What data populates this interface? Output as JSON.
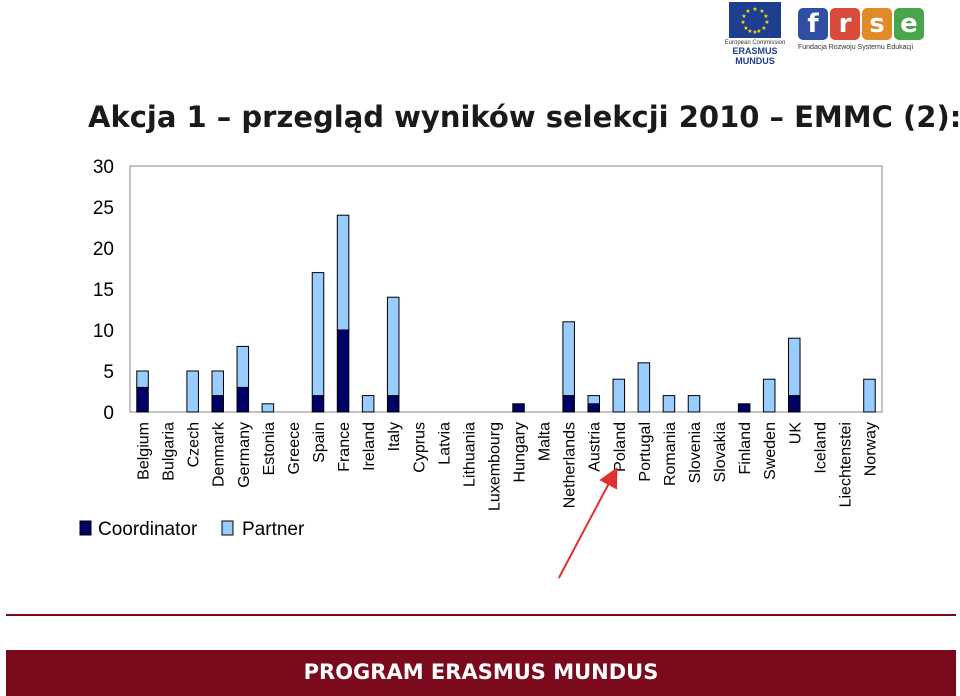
{
  "logos": {
    "ec_line1": "European Commission",
    "ec_line2": "ERASMUS",
    "ec_line3": "MUNDUS",
    "frse_letters": [
      "f",
      "r",
      "s",
      "e"
    ],
    "frse_caption": "Fundacja Rozwoju Systemu Edukacji"
  },
  "title": "Akcja 1 – przegląd wyników selekcji 2010 – EMMC (2):",
  "footer_text": "PROGRAM ERASMUS MUNDUS",
  "colors": {
    "coordinator": "#000066",
    "partner": "#99ccff",
    "footer": "#7a0a1c",
    "arrow": "#e03030"
  },
  "chart_data": {
    "type": "bar",
    "stacked": true,
    "categories": [
      "Belgium",
      "Bulgaria",
      "Czech",
      "Denmark",
      "Germany",
      "Estonia",
      "Greece",
      "Spain",
      "France",
      "Ireland",
      "Italy",
      "Cyprus",
      "Latvia",
      "Lithuania",
      "Luxembourg",
      "Hungary",
      "Malta",
      "Netherlands",
      "Austria",
      "Poland",
      "Portugal",
      "Romania",
      "Slovenia",
      "Slovakia",
      "Finland",
      "Sweden",
      "UK",
      "Iceland",
      "Liechtenstei",
      "Norway"
    ],
    "series": [
      {
        "name": "Coordinator",
        "values": [
          3,
          0,
          0,
          2,
          3,
          0,
          0,
          2,
          10,
          0,
          2,
          0,
          0,
          0,
          0,
          1,
          0,
          2,
          1,
          0,
          0,
          0,
          0,
          0,
          1,
          0,
          2,
          0,
          0,
          0
        ]
      },
      {
        "name": "Partner",
        "values": [
          2,
          0,
          5,
          3,
          5,
          1,
          0,
          15,
          14,
          2,
          12,
          0,
          0,
          0,
          0,
          0,
          0,
          9,
          1,
          4,
          6,
          2,
          2,
          0,
          0,
          4,
          7,
          0,
          0,
          4
        ]
      }
    ],
    "ylim": [
      0,
      30
    ],
    "yticks": [
      0,
      5,
      10,
      15,
      20,
      25,
      30
    ],
    "grid": false,
    "legend": "bottom-left",
    "annotation": {
      "type": "arrow",
      "target": "Poland"
    }
  }
}
